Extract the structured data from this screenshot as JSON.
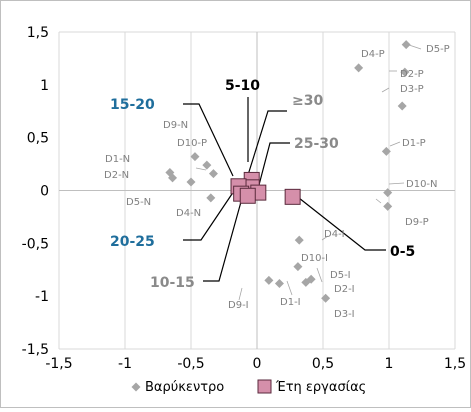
{
  "chart_data": {
    "type": "scatter",
    "title": "",
    "xlabel": "",
    "ylabel": "",
    "xlim": [
      -1.5,
      1.5
    ],
    "ylim": [
      -1.5,
      1.5
    ],
    "x_ticks": [
      "-1,5",
      "-1",
      "-0,5",
      "0",
      "0,5",
      "1",
      "1,5"
    ],
    "y_ticks": [
      "1,5",
      "1",
      "0,5",
      "0",
      "-0,5",
      "-1",
      "-1,5"
    ],
    "grid": "vertical gridlines plus axes through 0",
    "legend_position": "bottom",
    "colors": {
      "centroid": "#a6a6a6",
      "years_fill": "#d58faa",
      "years_edge": "#5a2a3c",
      "blue_label": "#1f6e9c",
      "grey_label": "#8a8a8a",
      "black_label": "#000000",
      "point_label": "#808080"
    },
    "series": [
      {
        "name": "Βαρύκεντρο",
        "marker": "diamond",
        "points": [
          {
            "label": "D5-P",
            "x": 1.13,
            "y": 1.38
          },
          {
            "label": "D4-P",
            "x": 0.77,
            "y": 1.16
          },
          {
            "label": "D2-P",
            "x": 1.12,
            "y": 1.12
          },
          {
            "label": "D3-P",
            "x": 1.1,
            "y": 0.8
          },
          {
            "label": "D1-P",
            "x": 0.98,
            "y": 0.37
          },
          {
            "label": "D10-N",
            "x": 0.99,
            "y": -0.02
          },
          {
            "label": "D9-P",
            "x": 0.99,
            "y": -0.15
          },
          {
            "label": "D9-N",
            "x": -0.47,
            "y": 0.32
          },
          {
            "label": "D10-P",
            "x": -0.38,
            "y": 0.24
          },
          {
            "label": "",
            "x": -0.33,
            "y": 0.16
          },
          {
            "label": "D1-N",
            "x": -0.66,
            "y": 0.17
          },
          {
            "label": "D2-N",
            "x": -0.64,
            "y": 0.12
          },
          {
            "label": "D5-N",
            "x": -0.5,
            "y": 0.08
          },
          {
            "label": "D4-N",
            "x": -0.35,
            "y": -0.07
          },
          {
            "label": "D4-I",
            "x": 0.32,
            "y": -0.47
          },
          {
            "label": "D10-I",
            "x": 0.31,
            "y": -0.72
          },
          {
            "label": "D5-I",
            "x": 0.41,
            "y": -0.84
          },
          {
            "label": "D2-I",
            "x": 0.37,
            "y": -0.87
          },
          {
            "label": "D3-I",
            "x": 0.52,
            "y": -1.02
          },
          {
            "label": "D9-I",
            "x": 0.09,
            "y": -0.85
          },
          {
            "label": "D1-I",
            "x": 0.17,
            "y": -0.88
          }
        ]
      },
      {
        "name": "Έτη εργασίας",
        "marker": "square",
        "points": [
          {
            "label": "0-5",
            "x": 0.27,
            "y": -0.06
          },
          {
            "label": "5-10",
            "x": -0.04,
            "y": 0.1
          },
          {
            "label": "≥30",
            "x": -0.04,
            "y": 0.03
          },
          {
            "label": "15-20",
            "x": -0.14,
            "y": 0.04
          },
          {
            "label": "25-30",
            "x": 0.01,
            "y": -0.02
          },
          {
            "label": "20-25",
            "x": -0.12,
            "y": -0.03
          },
          {
            "label": "10-15",
            "x": -0.07,
            "y": -0.05
          }
        ]
      }
    ],
    "annotations": [
      {
        "text": "5-10",
        "color": "black_label"
      },
      {
        "text": "≥30",
        "color": "grey_label"
      },
      {
        "text": "15-20",
        "color": "blue_label"
      },
      {
        "text": "25-30",
        "color": "grey_label"
      },
      {
        "text": "20-25",
        "color": "blue_label"
      },
      {
        "text": "10-15",
        "color": "grey_label"
      },
      {
        "text": "0-5",
        "color": "black_label"
      }
    ]
  }
}
